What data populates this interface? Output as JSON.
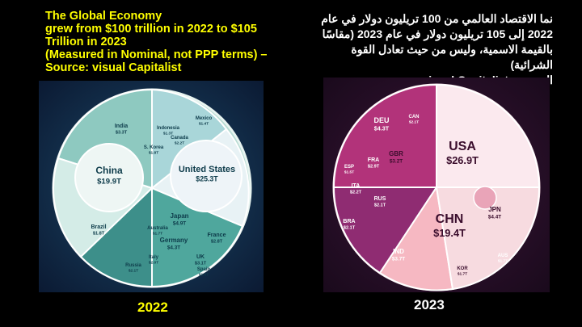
{
  "slide": {
    "title_en": [
      "The Global Economy",
      "grew from $100 trillion in 2022 to $105",
      "Trillion in 2023",
      "(Measured in Nominal, not PPP terms) –",
      "Source: visual Capitalist"
    ],
    "title_ar": [
      "نما الاقتصاد العالمي من 100 تريليون دولار في عام",
      "2022 إلى 105 تريليون دولار في عام 2023 (مقاسًا",
      "بالقيمة الاسمية، وليس من حيث تعادل القوة الشرائية)",
      "المصدر : visual Capitalist"
    ],
    "images": [
      {
        "caption": "2022",
        "labels": [
          {
            "name": "China",
            "value": "$19.9T"
          },
          {
            "name": "United States",
            "value": "$25.3T"
          },
          {
            "name": "Japan",
            "value": "$4.9T"
          },
          {
            "name": "India",
            "value": "$3.3T"
          },
          {
            "name": "Germany",
            "value": "$4.3T"
          },
          {
            "name": "UK",
            "value": "$3.1T"
          },
          {
            "name": "France",
            "value": "$2.8T"
          },
          {
            "name": "Indonesia",
            "value": "$1.3T"
          },
          {
            "name": "S. Korea",
            "value": "$1.8T"
          },
          {
            "name": "Canada",
            "value": "$2.2T"
          },
          {
            "name": "Brazil",
            "value": "$1.8T"
          },
          {
            "name": "Italy",
            "value": "$2.0T"
          },
          {
            "name": "Russia",
            "value": "$2.1T"
          },
          {
            "name": "Australia",
            "value": "$1.7T"
          },
          {
            "name": "Spain",
            "value": "$1.4T"
          },
          {
            "name": "Mexico",
            "value": "$1.4T"
          }
        ]
      },
      {
        "caption": "2023",
        "labels": [
          {
            "name": "USA",
            "value": "$26.9T"
          },
          {
            "name": "CHN",
            "value": "$19.4T"
          },
          {
            "name": "JPN",
            "value": "$4.4T"
          },
          {
            "name": "DEU",
            "value": "$4.3T"
          },
          {
            "name": "IND",
            "value": "$3.7T"
          },
          {
            "name": "GBR",
            "value": "$3.2T"
          },
          {
            "name": "FRA",
            "value": "$2.9T"
          },
          {
            "name": "ITA",
            "value": "$2.2T"
          },
          {
            "name": "CAN",
            "value": "$2.1T"
          },
          {
            "name": "BRA",
            "value": "$2.1T"
          },
          {
            "name": "RUS",
            "value": "$2.1T"
          },
          {
            "name": "KOR",
            "value": "$1.7T"
          },
          {
            "name": "ESP",
            "value": "$1.5T"
          },
          {
            "name": "AUS",
            "value": "$1.7T"
          }
        ]
      }
    ]
  }
}
